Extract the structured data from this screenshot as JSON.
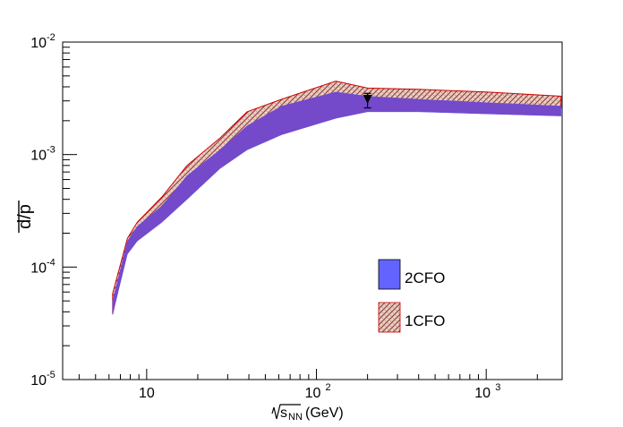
{
  "chart_data": {
    "type": "area",
    "title": "",
    "xscale": "log",
    "yscale": "log",
    "xlim": [
      3.2,
      2800
    ],
    "ylim": [
      1e-05,
      0.01
    ],
    "xlabel_base": "s",
    "xlabel_sub": "NN",
    "xlabel_unit": "(GeV)",
    "ylabel": "d/p",
    "x_ticks": [
      {
        "value": 10,
        "base": "10",
        "exp": ""
      },
      {
        "value": 100,
        "base": "10",
        "exp": "2"
      },
      {
        "value": 1000,
        "base": "10",
        "exp": "3"
      }
    ],
    "y_ticks": [
      {
        "value": 1e-05,
        "base": "10",
        "exp": "-5"
      },
      {
        "value": 0.0001,
        "base": "10",
        "exp": "-4"
      },
      {
        "value": 0.001,
        "base": "10",
        "exp": "-3"
      },
      {
        "value": 0.01,
        "base": "10",
        "exp": "-2"
      }
    ],
    "legend_position": "center-right",
    "series": [
      {
        "name": "1CFO",
        "style": "hatched band",
        "color": "#a05050",
        "x": [
          6.3,
          7.7,
          8.8,
          12.3,
          17.3,
          27,
          39,
          62.4,
          130,
          200,
          400,
          1000,
          2760
        ],
        "lower": [
          3.8e-05,
          0.00015,
          0.00019,
          0.00035,
          0.0006,
          0.0011,
          0.0017,
          0.0022,
          0.0028,
          0.0029,
          0.0029,
          0.0028,
          0.0026
        ],
        "upper": [
          5.8e-05,
          0.00018,
          0.00025,
          0.00042,
          0.0008,
          0.0014,
          0.0024,
          0.0031,
          0.0045,
          0.0039,
          0.0038,
          0.0036,
          0.0033
        ]
      },
      {
        "name": "2CFO",
        "style": "solid band",
        "color": "#6363ff",
        "x": [
          6.3,
          7.7,
          8.8,
          12.3,
          17.3,
          27,
          39,
          62.4,
          130,
          200,
          400,
          1000,
          2760
        ],
        "lower": [
          3.8e-05,
          0.00013,
          0.00017,
          0.00025,
          0.0004,
          0.00075,
          0.0011,
          0.0015,
          0.0021,
          0.0024,
          0.0024,
          0.0023,
          0.0022
        ],
        "upper": [
          5e-05,
          0.00017,
          0.00023,
          0.00035,
          0.00065,
          0.0011,
          0.0018,
          0.0027,
          0.0036,
          0.0033,
          0.0031,
          0.0029,
          0.0027
        ]
      }
    ],
    "data_points": [
      {
        "label": "measurement",
        "x": 200,
        "y": 0.0031,
        "err_low": 0.0026,
        "err_high": 0.0035,
        "marker": "triangle-down"
      }
    ]
  }
}
